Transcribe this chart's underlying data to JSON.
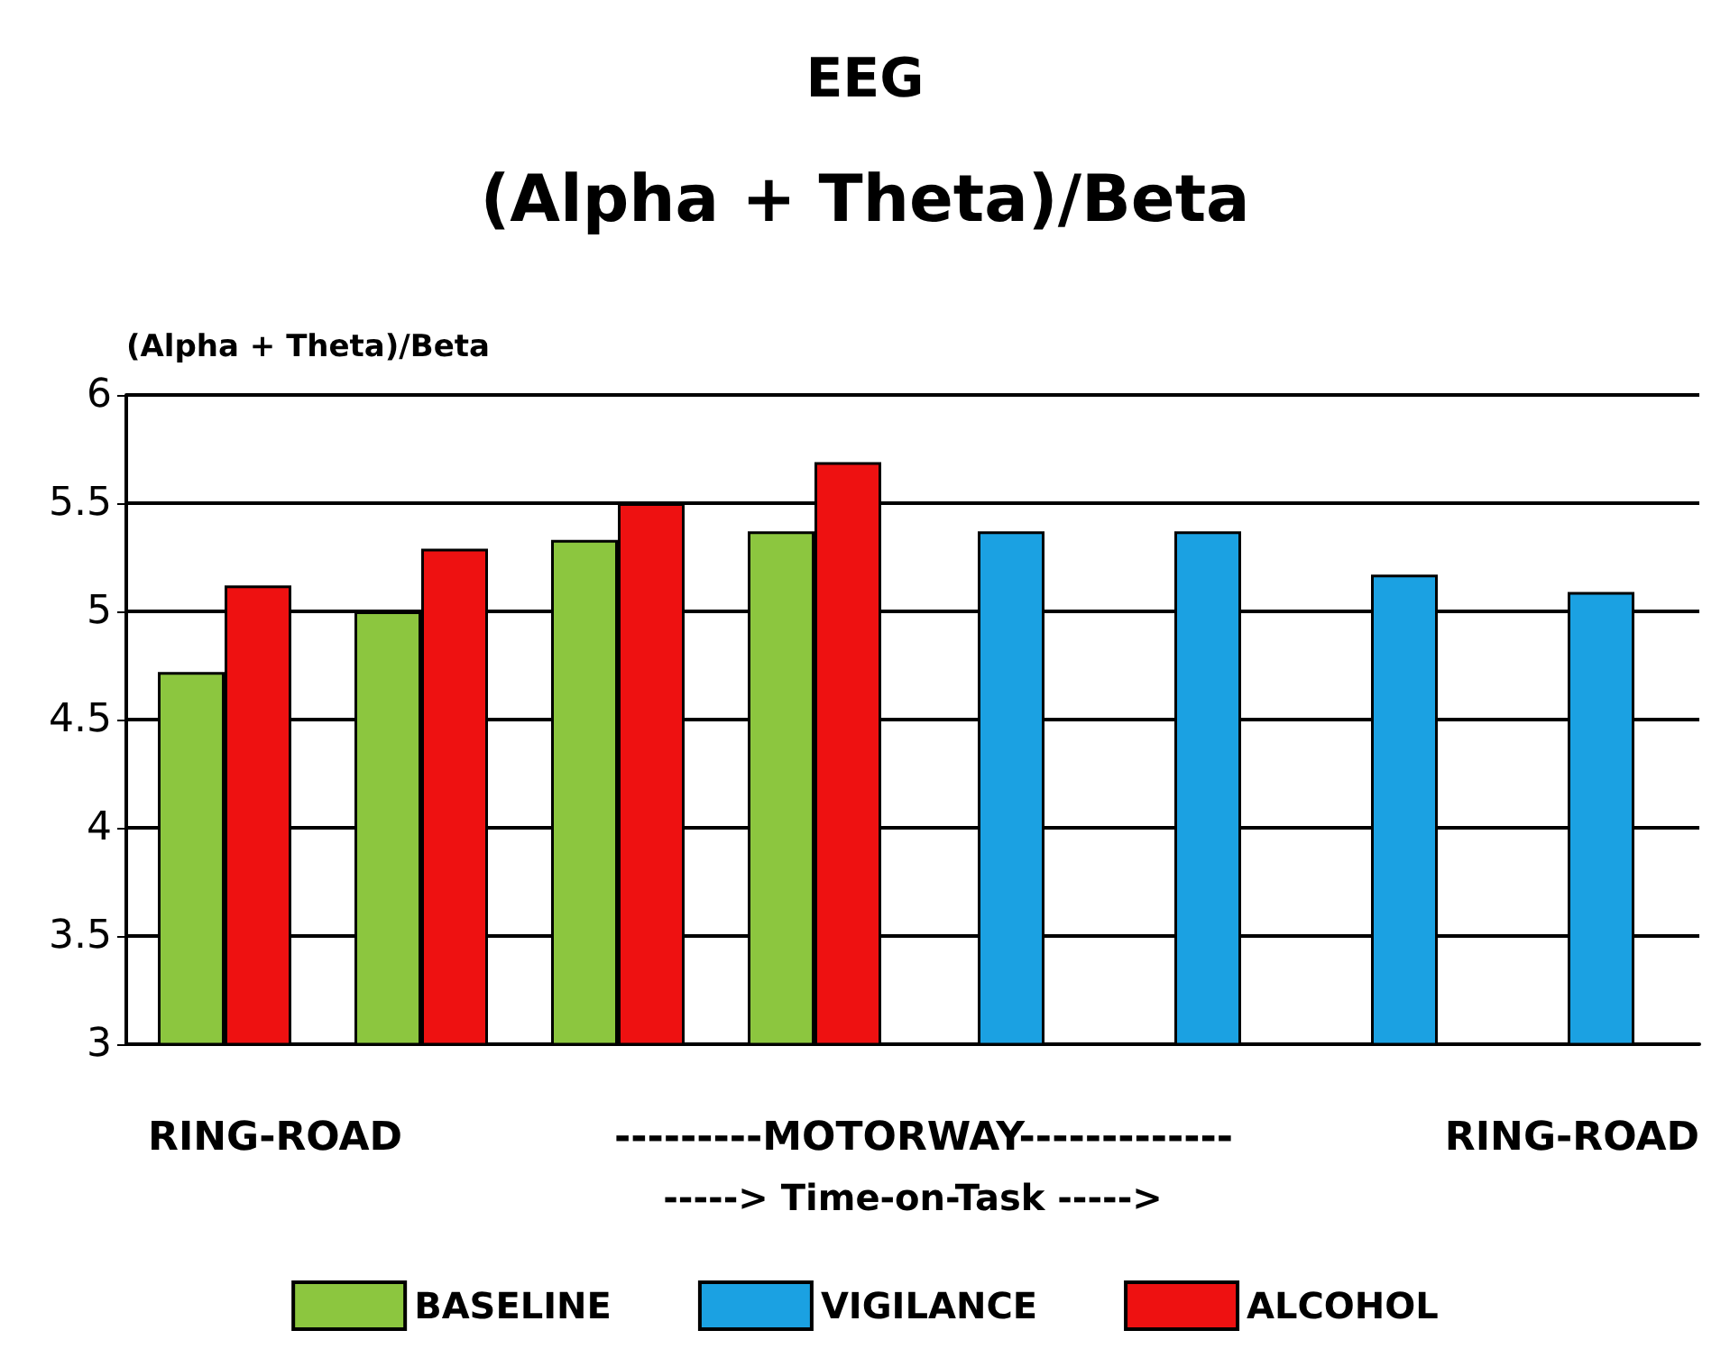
{
  "chart_data": {
    "type": "bar",
    "title": "EEG",
    "subtitle": "(Alpha + Theta)/Beta",
    "ylabel": "(Alpha + Theta)/Beta",
    "xlabel": "-----> Time-on-Task ----->",
    "annotations": [
      "RING-ROAD",
      "---------MOTORWAY-------------",
      "RING-ROAD"
    ],
    "categories": [
      null,
      null,
      null,
      null,
      null,
      null,
      null,
      null
    ],
    "series": [
      {
        "name": "BASELINE",
        "color": "#8cc63f",
        "values": [
          4.72,
          5.0,
          5.33,
          5.37,
          null,
          null,
          null,
          null
        ]
      },
      {
        "name": "VIGILANCE",
        "color": "#1ba1e2",
        "values": [
          null,
          null,
          null,
          null,
          5.37,
          5.37,
          5.17,
          5.09
        ]
      },
      {
        "name": "ALCOHOL",
        "color": "#ee1111",
        "values": [
          5.12,
          5.29,
          5.5,
          5.69,
          null,
          null,
          null,
          null
        ]
      }
    ],
    "ylim": [
      3,
      6
    ],
    "yticks": [
      3,
      3.5,
      4,
      4.5,
      5,
      5.5,
      6
    ],
    "grid": "y",
    "legend": "bottom"
  }
}
